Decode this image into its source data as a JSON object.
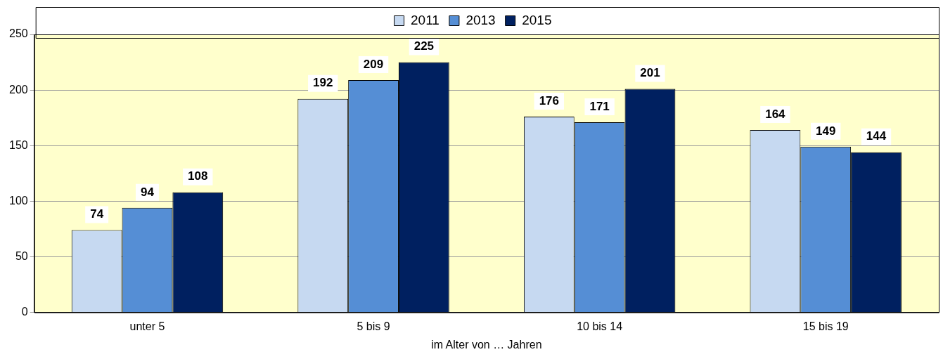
{
  "chart_data": {
    "type": "bar",
    "xlabel": "im Alter von … Jahren",
    "categories": [
      "unter 5",
      "5 bis 9",
      "10 bis 14",
      "15 bis 19"
    ],
    "series": [
      {
        "name": "2011",
        "color": "#c6d9f1",
        "values": [
          74,
          192,
          176,
          164
        ]
      },
      {
        "name": "2013",
        "color": "#558ed5",
        "values": [
          94,
          209,
          171,
          149
        ]
      },
      {
        "name": "2015",
        "color": "#002060",
        "values": [
          108,
          225,
          201,
          144
        ]
      }
    ],
    "ylim": [
      0,
      250
    ],
    "yticks": [
      0,
      50,
      100,
      150,
      200,
      250
    ],
    "grid": "y",
    "legend": "top",
    "data_labels": true
  }
}
